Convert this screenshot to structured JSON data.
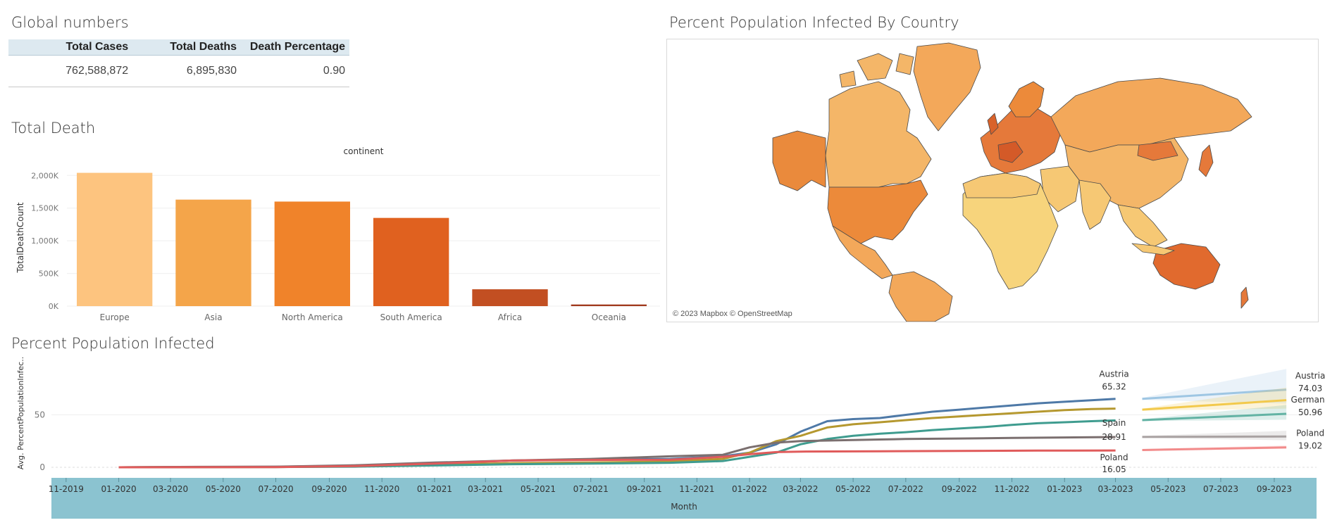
{
  "global_numbers": {
    "title": "Global numbers",
    "headers": [
      "Total Cases",
      "Total Deaths",
      "Death Percentage"
    ],
    "values": [
      "762,588,872",
      "6,895,830",
      "0.90"
    ]
  },
  "map": {
    "title": "Percent Population Infected By Country",
    "attribution": "© 2023 Mapbox © OpenStreetMap",
    "colors": {
      "ocean": "#ffffff",
      "low": "#f8d77a",
      "mid": "#f3a85a",
      "high": "#e16a2e",
      "border": "#4a4a4a"
    }
  },
  "chart_data": [
    {
      "type": "bar",
      "title": "Total Death",
      "header": "continent",
      "ylabel": "TotalDeathCount",
      "categories": [
        "Europe",
        "Asia",
        "North America",
        "South America",
        "Africa",
        "Oceania"
      ],
      "values": [
        2040000,
        1630000,
        1600000,
        1350000,
        258000,
        25000
      ],
      "ylim": [
        0,
        2100000
      ],
      "yticks": [
        0,
        500000,
        1000000,
        1500000,
        2000000
      ],
      "ytick_labels": [
        "0K",
        "500K",
        "1,000K",
        "1,500K",
        "2,000K"
      ],
      "colors": [
        "#fdc47f",
        "#f4a54a",
        "#f0832a",
        "#e0611f",
        "#c24f22",
        "#a13a1e"
      ],
      "grid": true
    },
    {
      "type": "line",
      "title": "Percent Population Infected",
      "ylabel": "Avg. PercentPopulationInfec..",
      "xlabel": "Month",
      "x_range": [
        "2019-10-15",
        "2023-10-20"
      ],
      "ylim": [
        -4,
        100
      ],
      "yticks": [
        0,
        50
      ],
      "ytick_labels": [
        "0",
        "50"
      ],
      "xtick_dates": [
        "2019-11-01",
        "2020-01-01",
        "2020-03-01",
        "2020-05-01",
        "2020-07-01",
        "2020-09-01",
        "2020-11-01",
        "2021-01-01",
        "2021-03-01",
        "2021-05-01",
        "2021-07-01",
        "2021-09-01",
        "2021-11-01",
        "2022-01-01",
        "2022-03-01",
        "2022-05-01",
        "2022-07-01",
        "2022-09-01",
        "2022-11-01",
        "2023-01-01",
        "2023-03-01",
        "2023-05-01",
        "2023-07-01",
        "2023-09-01"
      ],
      "xtick_labels": [
        "11-2019",
        "01-2020",
        "03-2020",
        "05-2020",
        "07-2020",
        "09-2020",
        "11-2020",
        "01-2021",
        "03-2021",
        "05-2021",
        "07-2021",
        "09-2021",
        "11-2021",
        "01-2022",
        "03-2022",
        "05-2022",
        "07-2022",
        "09-2022",
        "11-2022",
        "01-2023",
        "03-2023",
        "05-2023",
        "07-2023",
        "09-2023"
      ],
      "axis_band_color": "#8bc3d0",
      "series": [
        {
          "name": "Austria",
          "color": "#4e79a7",
          "x": [
            "2020-01-01",
            "2020-04-01",
            "2020-07-01",
            "2020-10-01",
            "2021-01-01",
            "2021-04-01",
            "2021-07-01",
            "2021-10-01",
            "2021-12-01",
            "2022-01-01",
            "2022-02-01",
            "2022-03-01",
            "2022-04-01",
            "2022-05-01",
            "2022-06-01",
            "2022-07-01",
            "2022-08-01",
            "2022-09-01",
            "2022-10-01",
            "2022-11-01",
            "2022-12-01",
            "2023-01-01",
            "2023-02-01",
            "2023-03-01"
          ],
          "y": [
            0,
            0.3,
            0.5,
            1.5,
            4,
            6.5,
            7.2,
            8,
            10.5,
            14,
            22,
            34,
            44,
            46,
            47,
            50,
            53,
            55,
            57,
            59,
            61,
            62.5,
            64,
            65.3
          ]
        },
        {
          "name": "Germany",
          "color": "#b5982f",
          "x": [
            "2020-01-01",
            "2020-04-01",
            "2020-07-01",
            "2020-10-01",
            "2021-01-01",
            "2021-04-01",
            "2021-07-01",
            "2021-10-01",
            "2021-12-01",
            "2022-01-01",
            "2022-02-01",
            "2022-03-01",
            "2022-04-01",
            "2022-05-01",
            "2022-06-01",
            "2022-07-01",
            "2022-08-01",
            "2022-09-01",
            "2022-10-01",
            "2022-11-01",
            "2022-12-01",
            "2023-01-01",
            "2023-02-01",
            "2023-03-01"
          ],
          "y": [
            0,
            0.2,
            0.3,
            0.8,
            2.5,
            4,
            4.5,
            5.5,
            8,
            14,
            25,
            30,
            38,
            41,
            43,
            45,
            47,
            48.5,
            50,
            51.5,
            53,
            54.5,
            55.5,
            56
          ]
        },
        {
          "name": "Germany",
          "color": "#3f9c8f",
          "x": [
            "2020-01-01",
            "2020-04-01",
            "2020-07-01",
            "2020-10-01",
            "2021-01-01",
            "2021-04-01",
            "2021-07-01",
            "2021-10-01",
            "2021-12-01",
            "2022-01-01",
            "2022-02-01",
            "2022-03-01",
            "2022-04-01",
            "2022-05-01",
            "2022-06-01",
            "2022-07-01",
            "2022-08-01",
            "2022-09-01",
            "2022-10-01",
            "2022-11-01",
            "2022-12-01",
            "2023-01-01",
            "2023-02-01",
            "2023-03-01"
          ],
          "y": [
            0,
            0.2,
            0.3,
            0.6,
            1.8,
            3,
            3.5,
            4.3,
            6,
            10,
            14,
            22,
            27,
            30,
            32,
            33.5,
            35.5,
            37,
            38.5,
            40.5,
            42,
            43,
            44,
            44.7
          ]
        },
        {
          "name": "Spain",
          "color": "#7b6f6f",
          "x": [
            "2020-01-01",
            "2020-04-01",
            "2020-07-01",
            "2020-10-01",
            "2021-01-01",
            "2021-04-01",
            "2021-07-01",
            "2021-10-01",
            "2021-12-01",
            "2022-01-01",
            "2022-02-01",
            "2022-03-01",
            "2022-04-01",
            "2022-05-01",
            "2022-06-01",
            "2022-07-01",
            "2022-09-01",
            "2022-11-01",
            "2023-01-01",
            "2023-03-01"
          ],
          "y": [
            0,
            0.4,
            0.6,
            2,
            4.5,
            6.5,
            8,
            10.5,
            12,
            19,
            23.5,
            25,
            25.5,
            26,
            26.5,
            27,
            27.5,
            28,
            28.5,
            28.9
          ]
        },
        {
          "name": "Poland",
          "color": "#e05b5b",
          "x": [
            "2020-01-01",
            "2020-04-01",
            "2020-07-01",
            "2020-10-01",
            "2021-01-01",
            "2021-04-01",
            "2021-07-01",
            "2021-10-01",
            "2021-12-01",
            "2022-01-01",
            "2022-02-01",
            "2022-03-01",
            "2022-06-01",
            "2022-09-01",
            "2022-12-01",
            "2023-03-01"
          ],
          "y": [
            0,
            0.1,
            0.2,
            1.2,
            3.5,
            6.5,
            7,
            7.3,
            10,
            12.5,
            14.5,
            15,
            15.3,
            15.6,
            15.9,
            16.05
          ]
        }
      ],
      "end_labels": [
        {
          "name": "Austria",
          "value": "65.32"
        },
        {
          "name": "Spain",
          "value": "28.91"
        },
        {
          "name": "Poland",
          "value": "16.05"
        }
      ],
      "forecast": [
        {
          "name": "Austria",
          "value": "74.03",
          "color": "#9ec6e3",
          "start": 65.3,
          "end": 74.0,
          "band": [
            9,
            33
          ]
        },
        {
          "name": "",
          "value": "",
          "color": "#f2c94c",
          "start": 55,
          "end": 64,
          "band": [
            7,
            20
          ]
        },
        {
          "name": "Germany",
          "value": "50.96",
          "color": "#63b3a4",
          "start": 45,
          "end": 51,
          "band": [
            5,
            14
          ]
        },
        {
          "name": "",
          "value": "",
          "color": "#a9a2a2",
          "start": 29,
          "end": 29.4,
          "band": [
            2,
            9
          ]
        },
        {
          "name": "Poland",
          "value": "19.02",
          "color": "#f28b8b",
          "start": 16.5,
          "end": 19.0,
          "band": [
            1,
            3
          ]
        }
      ]
    }
  ]
}
